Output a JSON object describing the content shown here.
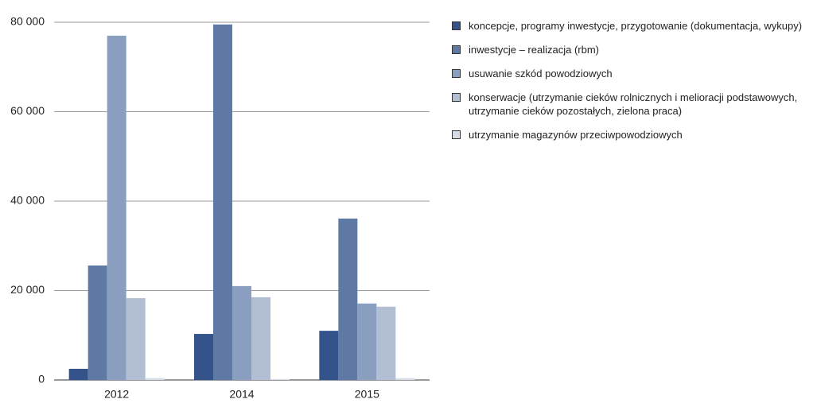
{
  "chart_data": {
    "type": "bar",
    "categories": [
      "2012",
      "2014",
      "2015"
    ],
    "series": [
      {
        "name": "koncepcje, programy inwestycje, przygotowanie (dokumentacja, wykupy)",
        "color": "#34538a",
        "values": [
          2500,
          10300,
          11000
        ]
      },
      {
        "name": "inwestycje – realizacja (rbm)",
        "color": "#5e7aa4",
        "values": [
          25600,
          79500,
          36100
        ]
      },
      {
        "name": "usuwanie szkód powodziowych",
        "color": "#8a9fbf",
        "values": [
          77000,
          21000,
          17100
        ]
      },
      {
        "name": "konserwacje (utrzymanie cieków rolnicznych i melioracji podstawowych, utrzymanie cieków pozostałych, zielona praca)",
        "color": "#b1bed4",
        "values": [
          18300,
          18500,
          16400
        ]
      },
      {
        "name": "utrzymanie magazynów przeciwpowodziowych",
        "color": "#d4dce8",
        "values": [
          400,
          200,
          400
        ]
      }
    ],
    "ylim": [
      0,
      80000
    ],
    "yticks": [
      0,
      {
        "value": 20000,
        "label": "20 000"
      },
      {
        "value": 40000,
        "label": "40 000"
      },
      {
        "value": 60000,
        "label": "60 000"
      },
      {
        "value": 80000,
        "label": "80 000"
      }
    ],
    "grid": true
  }
}
